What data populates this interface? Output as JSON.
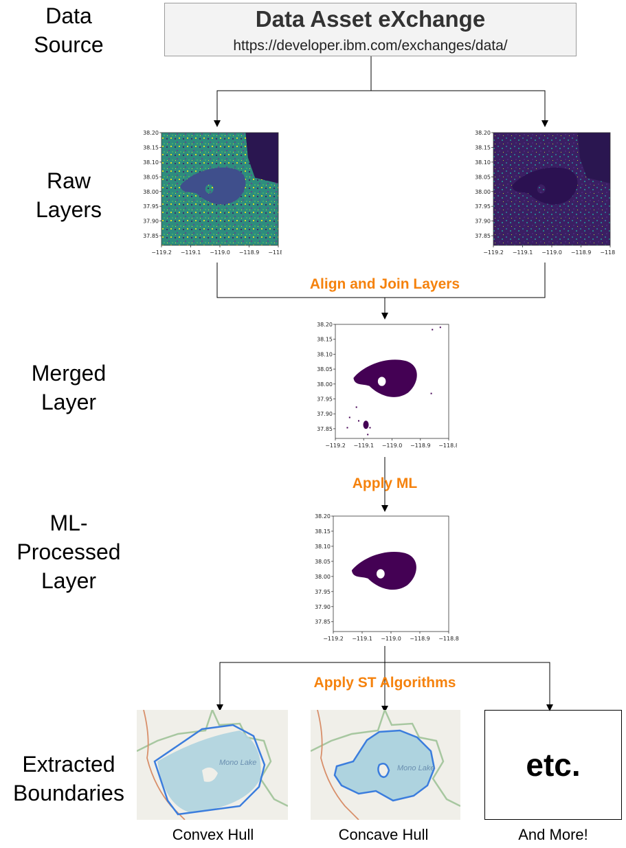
{
  "stages": {
    "data_source": "Data\nSource",
    "raw_layers": "Raw\nLayers",
    "merged_layer": "Merged\nLayer",
    "ml_processed_layer": "ML-\nProcessed\nLayer",
    "extracted_boundaries": "Extracted\nBoundaries"
  },
  "source": {
    "title": "Data Asset eXchange",
    "url": "https://developer.ibm.com/exchanges/data/"
  },
  "steps": {
    "align_join": "Align and Join Layers",
    "apply_ml": "Apply ML",
    "apply_st": "Apply ST Algorithms"
  },
  "plot_axes": {
    "y_ticks": [
      "38.20",
      "38.15",
      "38.10",
      "38.05",
      "38.00",
      "37.95",
      "37.90",
      "37.85"
    ],
    "x_ticks": [
      "−119.2",
      "−119.1",
      "−119.0",
      "−118.9",
      "−118.8"
    ]
  },
  "boundaries": {
    "convex_caption": "Convex Hull",
    "concave_caption": "Concave Hull",
    "more_caption": "And More!",
    "etc_label": "etc.",
    "map_lake_label": "Mono Lake"
  },
  "colors": {
    "accent_orange": "#f5820d",
    "lake_fill": "#440154",
    "hull_stroke": "#3b7ddd",
    "water": "#aed3df",
    "raw_teal": "#2e8c7e",
    "raw_purple": "#3b1f63"
  }
}
